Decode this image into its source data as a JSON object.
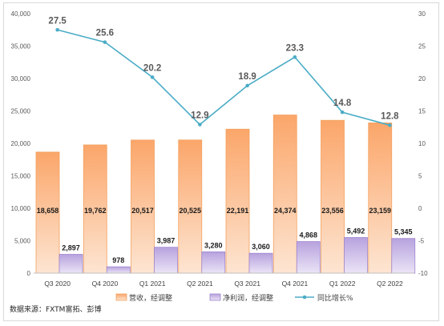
{
  "source_note": "数据来源：FXTM富拓、彭博",
  "chart_data": {
    "type": "bar",
    "categories": [
      "Q3 2020",
      "Q4 2020",
      "Q1 2021",
      "Q2 2021",
      "Q3 2021",
      "Q4 2021",
      "Q1 2022",
      "Q2 2022"
    ],
    "series": [
      {
        "name": "营收，经调整",
        "kind": "bar",
        "axis": "left",
        "color": "#fbc49a",
        "values": [
          18658,
          19762,
          20517,
          20525,
          22191,
          24374,
          23556,
          23159
        ],
        "labels": [
          "18,658",
          "19,762",
          "20,517",
          "20,525",
          "22,191",
          "24,374",
          "23,556",
          "23,159"
        ]
      },
      {
        "name": "净利润，经调整",
        "kind": "bar",
        "axis": "left",
        "color": "#cdbde8",
        "values": [
          2897,
          978,
          3987,
          3280,
          3060,
          4868,
          5492,
          5345
        ],
        "labels": [
          "2,897",
          "978",
          "3,987",
          "3,280",
          "3,060",
          "4,868",
          "5,492",
          "5,345"
        ]
      },
      {
        "name": "同比增长%",
        "kind": "line",
        "axis": "right",
        "color": "#4bacc6",
        "values": [
          27.5,
          25.6,
          20.2,
          12.9,
          18.9,
          23.3,
          14.8,
          12.8
        ],
        "labels": [
          "27.5",
          "25.6",
          "20.2",
          "12.9",
          "18.9",
          "23.3",
          "14.8",
          "12.8"
        ]
      }
    ],
    "y_left": {
      "min": 0,
      "max": 40000,
      "step": 5000,
      "tick_labels": [
        "0",
        "5,000",
        "10,000",
        "15,000",
        "20,000",
        "25,000",
        "30,000",
        "35,000",
        "40,000"
      ]
    },
    "y_right": {
      "min": -10,
      "max": 30,
      "step": 5,
      "tick_labels": [
        "-10",
        "-5",
        "0",
        "5",
        "10",
        "15",
        "20",
        "25",
        "30"
      ]
    },
    "grid": false,
    "legend_position": "bottom"
  }
}
